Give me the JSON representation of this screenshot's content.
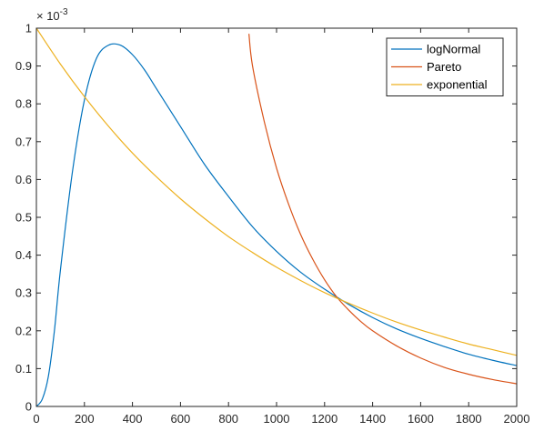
{
  "chart_data": {
    "type": "line",
    "title": "",
    "xlabel": "",
    "ylabel": "",
    "xlim": [
      0,
      2000
    ],
    "ylim": [
      0,
      1
    ],
    "y_multiplier": "× 10",
    "y_multiplier_exponent": "-3",
    "x_ticks": [
      "0",
      "200",
      "400",
      "600",
      "800",
      "1000",
      "1200",
      "1400",
      "1600",
      "1800",
      "2000"
    ],
    "y_ticks": [
      "0",
      "0.1",
      "0.2",
      "0.3",
      "0.4",
      "0.5",
      "0.6",
      "0.7",
      "0.8",
      "0.9",
      "1"
    ],
    "grid": false,
    "legend_position": "top-right",
    "x": [
      0,
      50,
      100,
      150,
      200,
      250,
      300,
      350,
      400,
      450,
      500,
      550,
      600,
      650,
      700,
      750,
      800,
      850,
      900,
      950,
      1000,
      1050,
      1100,
      1150,
      1200,
      1250,
      1300,
      1350,
      1400,
      1450,
      1500,
      1550,
      1600,
      1650,
      1700,
      1750,
      1800,
      1850,
      1900,
      1950,
      2000
    ],
    "series": [
      {
        "name": "logNormal",
        "color": "#0072BD",
        "x": [
          0,
          25,
          50,
          75,
          100,
          150,
          200,
          250,
          300,
          350,
          400,
          450,
          500,
          600,
          700,
          800,
          900,
          1000,
          1100,
          1200,
          1300,
          1400,
          1500,
          1600,
          1700,
          1800,
          1900,
          2000
        ],
        "values": [
          0,
          0.02,
          0.08,
          0.2,
          0.36,
          0.62,
          0.81,
          0.92,
          0.955,
          0.955,
          0.93,
          0.89,
          0.84,
          0.74,
          0.64,
          0.555,
          0.475,
          0.41,
          0.355,
          0.31,
          0.27,
          0.235,
          0.205,
          0.18,
          0.158,
          0.138,
          0.122,
          0.108
        ]
      },
      {
        "name": "Pareto",
        "color": "#D95319",
        "x": [
          885,
          900,
          950,
          1000,
          1050,
          1100,
          1150,
          1200,
          1250,
          1300,
          1350,
          1400,
          1500,
          1600,
          1700,
          1800,
          1900,
          2000
        ],
        "values": [
          0.985,
          0.9,
          0.75,
          0.63,
          0.535,
          0.455,
          0.39,
          0.335,
          0.29,
          0.255,
          0.225,
          0.2,
          0.16,
          0.128,
          0.103,
          0.085,
          0.071,
          0.06
        ]
      },
      {
        "name": "exponential",
        "color": "#EDB120",
        "x": [
          0,
          100,
          200,
          300,
          400,
          500,
          600,
          700,
          800,
          900,
          1000,
          1100,
          1200,
          1300,
          1400,
          1500,
          1600,
          1700,
          1800,
          1900,
          2000
        ],
        "values": [
          1,
          0.905,
          0.819,
          0.741,
          0.67,
          0.607,
          0.549,
          0.497,
          0.449,
          0.407,
          0.368,
          0.333,
          0.301,
          0.273,
          0.247,
          0.223,
          0.202,
          0.183,
          0.165,
          0.15,
          0.135
        ]
      }
    ]
  }
}
